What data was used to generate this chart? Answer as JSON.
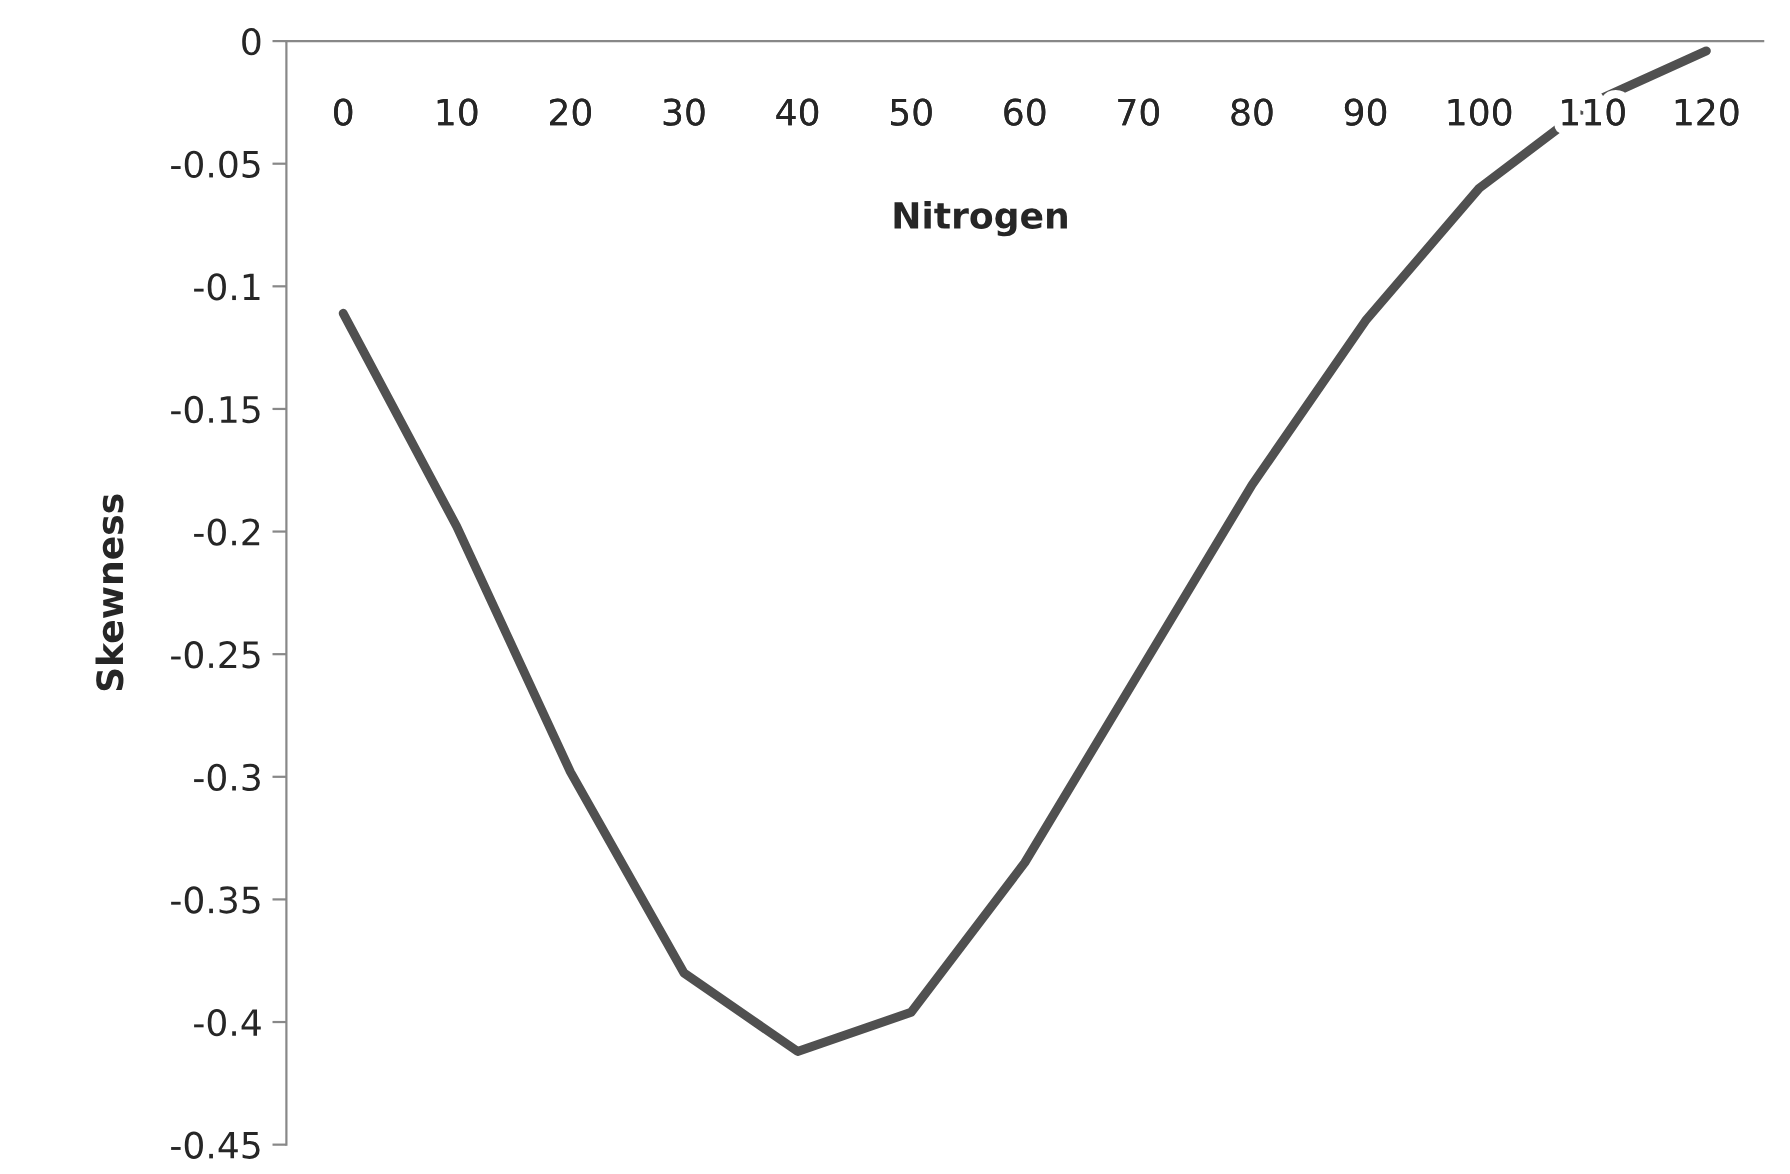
{
  "chart_data": {
    "type": "line",
    "xlabel": "Nitrogen",
    "ylabel": "Skewness",
    "categories": [
      "0",
      "10",
      "20",
      "30",
      "40",
      "50",
      "60",
      "70",
      "80",
      "90",
      "100",
      "110",
      "120"
    ],
    "series": [
      {
        "color": "#505050",
        "values": [
          -0.111,
          -0.198,
          -0.298,
          -0.38,
          -0.412,
          -0.396,
          -0.335,
          -0.258,
          -0.181,
          -0.114,
          -0.06,
          -0.025,
          -0.004
        ]
      }
    ],
    "ylim": [
      -0.45,
      0
    ],
    "yticks": [
      {
        "value": -0.45,
        "label": "-0.45"
      },
      {
        "value": -0.4,
        "label": "-0.4"
      },
      {
        "value": -0.35,
        "label": "-0.35"
      },
      {
        "value": -0.3,
        "label": "-0.3"
      },
      {
        "value": -0.25,
        "label": "-0.25"
      },
      {
        "value": -0.2,
        "label": "-0.2"
      },
      {
        "value": -0.15,
        "label": "-0.15"
      },
      {
        "value": -0.1,
        "label": "-0.1"
      },
      {
        "value": -0.05,
        "label": "-0.05"
      },
      {
        "value": 0,
        "label": "0"
      }
    ],
    "grid": false,
    "legend": false,
    "marker": "none",
    "line_style": "solid"
  }
}
